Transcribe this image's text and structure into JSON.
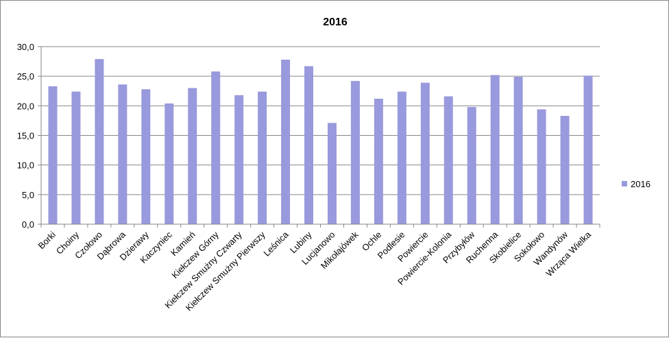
{
  "chart_data": {
    "type": "bar",
    "title": "2016",
    "xlabel": "",
    "ylabel": "",
    "ylim": [
      0,
      30
    ],
    "ytick_step": 5,
    "ytick_labels": [
      "0,0",
      "5,0",
      "10,0",
      "15,0",
      "20,0",
      "25,0",
      "30,0"
    ],
    "grid": true,
    "legend_position": "right",
    "bar_color": "#9999dd",
    "categories": [
      "Borki",
      "Choiny",
      "Czołowo",
      "Dąbrowa",
      "Dzierawy",
      "Kaczyniec",
      "Kamień",
      "Kiełczew Górny",
      "Kiełczew Smużny Czwarty",
      "Kiełczew Smużny Pierwszy",
      "Leśnica",
      "Lubiny",
      "Lucjanowo",
      "Mikołajówek",
      "Ochle",
      "Podlesie",
      "Powiercie",
      "Powiercie-Kolonia",
      "Przybyłów",
      "Ruchenna",
      "Skobielice",
      "Sokołowo",
      "Wandynów",
      "Wrząca Wielka"
    ],
    "series": [
      {
        "name": "2016",
        "values": [
          23.3,
          22.4,
          27.9,
          23.6,
          22.8,
          20.4,
          23.0,
          25.8,
          21.8,
          22.4,
          27.8,
          26.7,
          17.1,
          24.2,
          21.2,
          22.4,
          23.9,
          21.6,
          19.8,
          25.2,
          24.9,
          19.4,
          18.3,
          25.1
        ]
      }
    ]
  }
}
